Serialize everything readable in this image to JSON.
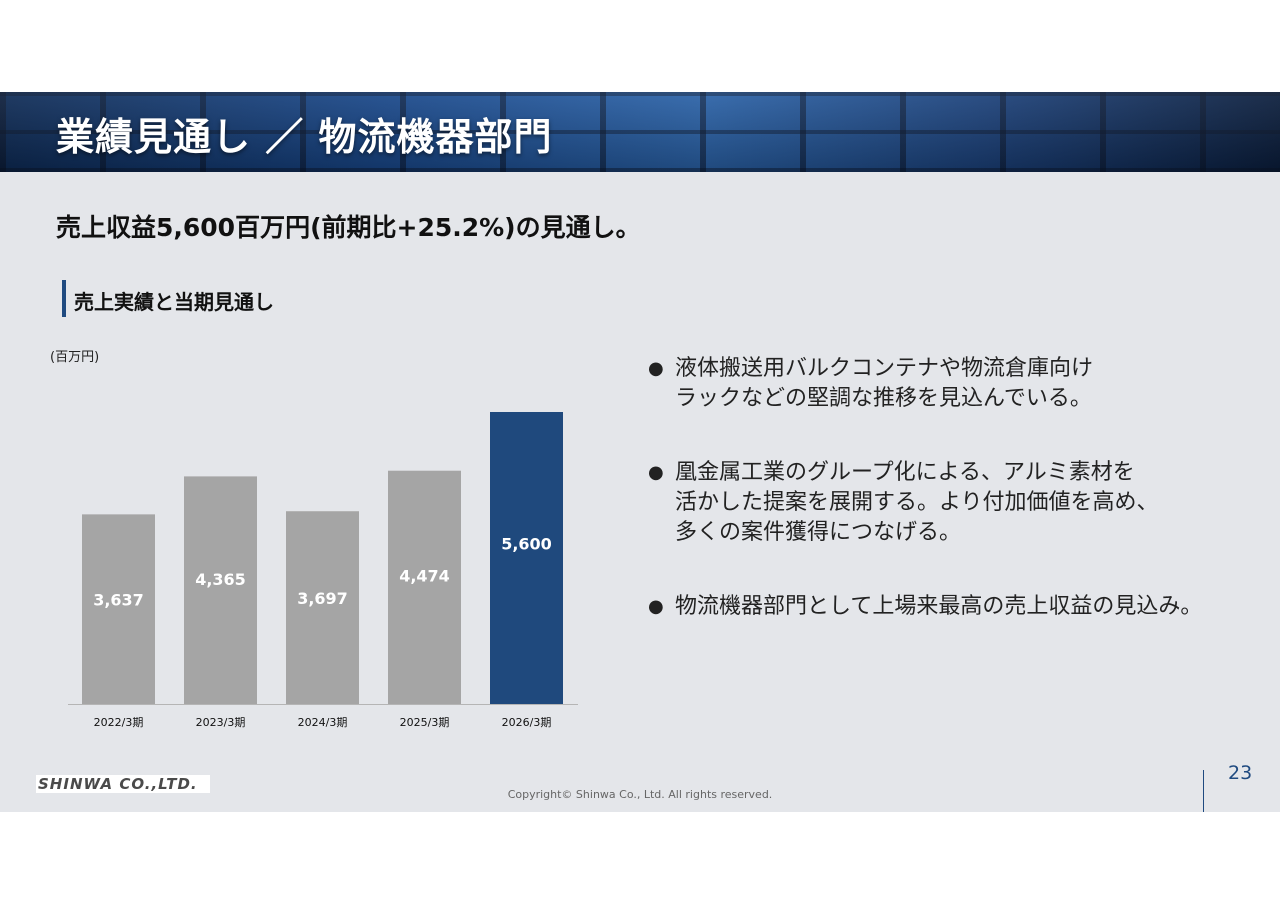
{
  "header": {
    "title": "業績見通し ／ 物流機器部門"
  },
  "headline": "売上収益5,600百万円(前期比+25.2%)の見通し。",
  "section": {
    "title": "売上実績と当期見通し"
  },
  "chart_data": {
    "type": "bar",
    "unit_label": "(百万円)",
    "categories": [
      "2022/3期",
      "2023/3期",
      "2024/3期",
      "2025/3期",
      "2026/3期"
    ],
    "values": [
      3637,
      4365,
      3697,
      4474,
      5600
    ],
    "value_labels": [
      "3,637",
      "4,365",
      "3,697",
      "4,474",
      "5,600"
    ],
    "ylim": [
      0,
      5600
    ],
    "bar_colors": [
      "#a5a5a5",
      "#a5a5a5",
      "#a5a5a5",
      "#a5a5a5",
      "#1f497d"
    ],
    "label_color": "#ffffff"
  },
  "bullets": [
    {
      "lines": [
        "液体搬送用バルクコンテナや物流倉庫向け",
        "ラックなどの堅調な推移を見込んでいる。"
      ]
    },
    {
      "lines": [
        "凰金属工業のグループ化による、アルミ素材を",
        "活かした提案を展開する。より付加価値を高め、",
        "多くの案件獲得につなげる。"
      ]
    },
    {
      "lines": [
        "物流機器部門として上場来最高の売上収益の見込み。"
      ]
    }
  ],
  "footer": {
    "logo_text": "SHINWA CO.,LTD.",
    "copyright": "Copyright© Shinwa Co., Ltd. All rights reserved.",
    "page_number": "23"
  }
}
